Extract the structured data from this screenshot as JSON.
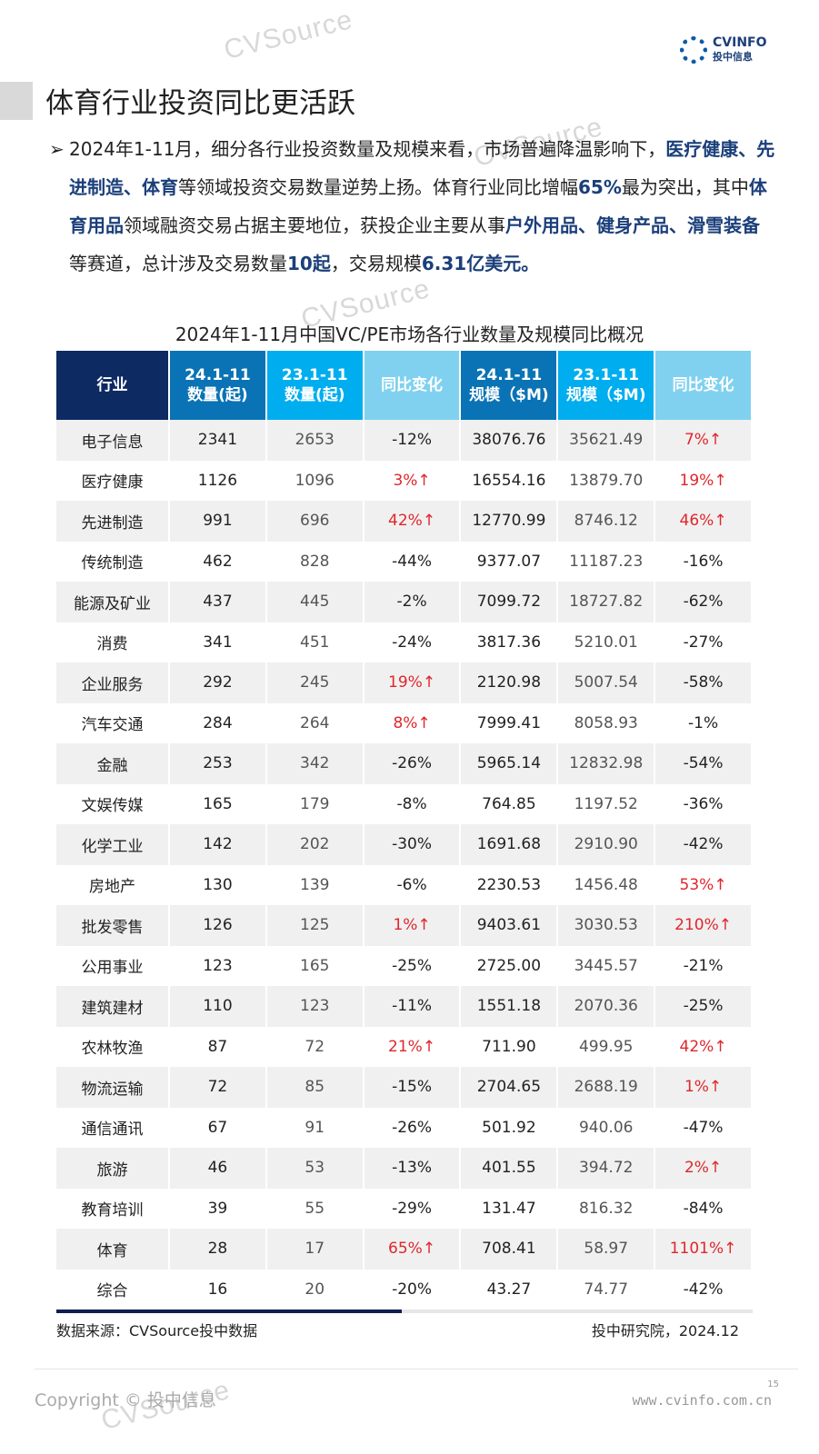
{
  "logo": {
    "en": "CVINFO",
    "cn": "投中信息"
  },
  "watermark": "CVSource",
  "title": "体育行业投资同比更活跃",
  "paragraph": [
    {
      "t": "2024年1-11月，细分各行业投资数量及规模来看，市场普遍降温影响下，",
      "b": false
    },
    {
      "t": "医疗健康、先进制造、体育",
      "b": true
    },
    {
      "t": "等领域投资交易数量逆势上扬。体育行业同比增幅",
      "b": false
    },
    {
      "t": "65%",
      "b": true
    },
    {
      "t": "最为突出，其中",
      "b": false
    },
    {
      "t": "体育用品",
      "b": true
    },
    {
      "t": "领域融资交易占据主要地位，获投企业主要从事",
      "b": false
    },
    {
      "t": "户外用品、健身产品、滑雪装备",
      "b": true
    },
    {
      "t": "等赛道，总计涉及交易数量",
      "b": false
    },
    {
      "t": "10起",
      "b": true
    },
    {
      "t": "，交易规模",
      "b": false
    },
    {
      "t": "6.31亿美元。",
      "b": true
    }
  ],
  "table": {
    "title": "2024年1-11月中国VC/PE市场各行业数量及规模同比概况",
    "headers": [
      [
        "行业"
      ],
      [
        "24.1-11",
        "数量(起)"
      ],
      [
        "23.1-11",
        "数量(起)"
      ],
      [
        "同比变化"
      ],
      [
        "24.1-11",
        "规模（$M)"
      ],
      [
        "23.1-11",
        "规模（$M)"
      ],
      [
        "同比变化"
      ]
    ],
    "rows": [
      [
        "电子信息",
        "2341",
        "2653",
        "-12%",
        "38076.76",
        "35621.49",
        "7%↑"
      ],
      [
        "医疗健康",
        "1126",
        "1096",
        "3%↑",
        "16554.16",
        "13879.70",
        "19%↑"
      ],
      [
        "先进制造",
        "991",
        "696",
        "42%↑",
        "12770.99",
        "8746.12",
        "46%↑"
      ],
      [
        "传统制造",
        "462",
        "828",
        "-44%",
        "9377.07",
        "11187.23",
        "-16%"
      ],
      [
        "能源及矿业",
        "437",
        "445",
        "-2%",
        "7099.72",
        "18727.82",
        "-62%"
      ],
      [
        "消费",
        "341",
        "451",
        "-24%",
        "3817.36",
        "5210.01",
        "-27%"
      ],
      [
        "企业服务",
        "292",
        "245",
        "19%↑",
        "2120.98",
        "5007.54",
        "-58%"
      ],
      [
        "汽车交通",
        "284",
        "264",
        "8%↑",
        "7999.41",
        "8058.93",
        "-1%"
      ],
      [
        "金融",
        "253",
        "342",
        "-26%",
        "5965.14",
        "12832.98",
        "-54%"
      ],
      [
        "文娱传媒",
        "165",
        "179",
        "-8%",
        "764.85",
        "1197.52",
        "-36%"
      ],
      [
        "化学工业",
        "142",
        "202",
        "-30%",
        "1691.68",
        "2910.90",
        "-42%"
      ],
      [
        "房地产",
        "130",
        "139",
        "-6%",
        "2230.53",
        "1456.48",
        "53%↑"
      ],
      [
        "批发零售",
        "126",
        "125",
        "1%↑",
        "9403.61",
        "3030.53",
        "210%↑"
      ],
      [
        "公用事业",
        "123",
        "165",
        "-25%",
        "2725.00",
        "3445.57",
        "-21%"
      ],
      [
        "建筑建材",
        "110",
        "123",
        "-11%",
        "1551.18",
        "2070.36",
        "-25%"
      ],
      [
        "农林牧渔",
        "87",
        "72",
        "21%↑",
        "711.90",
        "499.95",
        "42%↑"
      ],
      [
        "物流运输",
        "72",
        "85",
        "-15%",
        "2704.65",
        "2688.19",
        "1%↑"
      ],
      [
        "通信通讯",
        "67",
        "91",
        "-26%",
        "501.92",
        "940.06",
        "-47%"
      ],
      [
        "旅游",
        "46",
        "53",
        "-13%",
        "401.55",
        "394.72",
        "2%↑"
      ],
      [
        "教育培训",
        "39",
        "55",
        "-29%",
        "131.47",
        "816.32",
        "-84%"
      ],
      [
        "体育",
        "28",
        "17",
        "65%↑",
        "708.41",
        "58.97",
        "1101%↑"
      ],
      [
        "综合",
        "16",
        "20",
        "-20%",
        "43.27",
        "74.77",
        "-42%"
      ]
    ]
  },
  "source": "数据来源：CVSource投中数据",
  "credit": "投中研究院，2024.12",
  "copyright": "Copyright © 投中信息",
  "page_number": "15",
  "url": "www.cvinfo.com.cn"
}
